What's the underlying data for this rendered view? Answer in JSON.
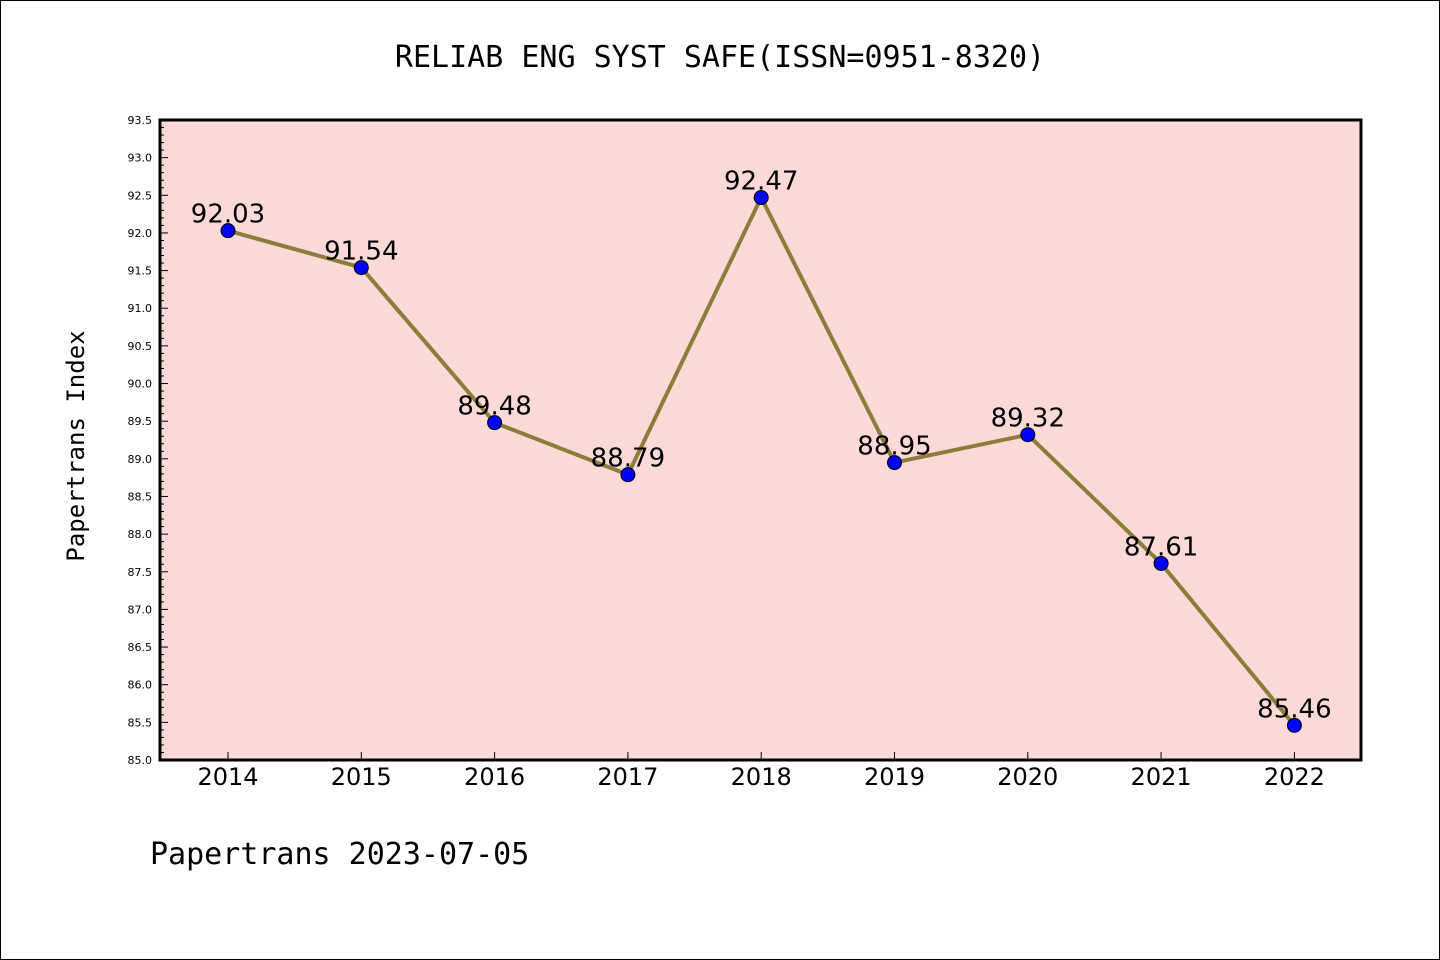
{
  "chart_data": {
    "type": "line",
    "title": "RELIAB ENG SYST SAFE(ISSN=0951-8320)",
    "xlabel": "",
    "ylabel": "Papertrans Index",
    "categories": [
      "2014",
      "2015",
      "2016",
      "2017",
      "2018",
      "2019",
      "2020",
      "2021",
      "2022"
    ],
    "values": [
      92.03,
      91.54,
      89.48,
      88.79,
      92.47,
      88.95,
      89.32,
      87.61,
      85.46
    ],
    "data_labels": [
      "92.03",
      "91.54",
      "89.48",
      "88.79",
      "92.47",
      "88.95",
      "89.32",
      "87.61",
      "85.46"
    ],
    "ylim": [
      85.0,
      93.5
    ],
    "ytick_step": 0.5,
    "yticks": [
      "85.0",
      "85.5",
      "86.0",
      "86.5",
      "87.0",
      "87.5",
      "88.0",
      "88.5",
      "89.0",
      "89.5",
      "90.0",
      "90.5",
      "91.0",
      "91.5",
      "92.0",
      "92.5",
      "93.0",
      "93.5"
    ],
    "grid": false,
    "legend": "none",
    "colors": {
      "plot_background": "#fddad8",
      "line": "#8b7d3a",
      "marker": "#0000ff"
    }
  },
  "footer": {
    "text": "Papertrans 2023-07-05"
  }
}
